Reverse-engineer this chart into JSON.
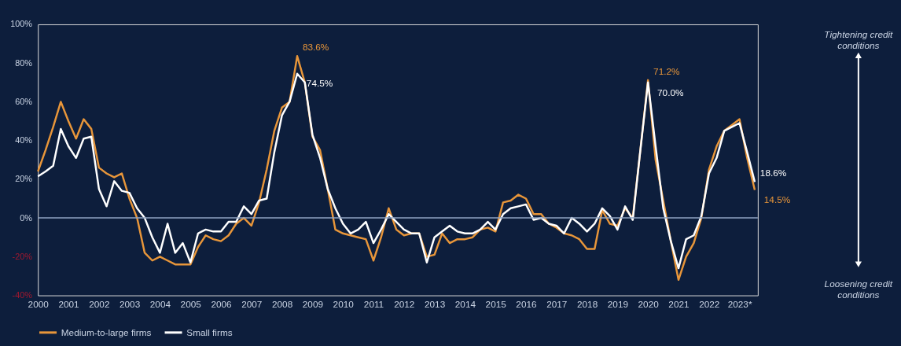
{
  "chart_data": {
    "type": "line",
    "x": [
      2000,
      2000.25,
      2000.5,
      2000.75,
      2001,
      2001.25,
      2001.5,
      2001.75,
      2002,
      2002.25,
      2002.5,
      2002.75,
      2003,
      2003.25,
      2003.5,
      2003.75,
      2004,
      2004.25,
      2004.5,
      2004.75,
      2005,
      2005.25,
      2005.5,
      2005.75,
      2006,
      2006.25,
      2006.5,
      2006.75,
      2007,
      2007.25,
      2007.5,
      2007.75,
      2008,
      2008.25,
      2008.5,
      2008.75,
      2009,
      2009.25,
      2009.5,
      2009.75,
      2010,
      2010.25,
      2010.5,
      2010.75,
      2011,
      2011.25,
      2011.5,
      2011.75,
      2012,
      2012.25,
      2012.5,
      2012.75,
      2013,
      2013.25,
      2013.5,
      2013.75,
      2014,
      2014.25,
      2014.5,
      2014.75,
      2015,
      2015.25,
      2015.5,
      2015.75,
      2016,
      2016.25,
      2016.5,
      2016.75,
      2017,
      2017.25,
      2017.5,
      2017.75,
      2018,
      2018.25,
      2018.5,
      2018.75,
      2019,
      2019.25,
      2019.5,
      2019.75,
      2020,
      2020.25,
      2020.5,
      2020.75,
      2021,
      2021.25,
      2021.5,
      2021.75,
      2022,
      2022.25,
      2022.5,
      2022.75,
      2023,
      2023.25,
      2023.5
    ],
    "series": [
      {
        "name": "Medium-to-large firms",
        "color": "#e8963a",
        "values": [
          24,
          35,
          47,
          60,
          50,
          41,
          51,
          46,
          26,
          23,
          21,
          23,
          10,
          0,
          -18,
          -22,
          -20,
          -22,
          -24,
          -24,
          -24,
          -15,
          -9,
          -11,
          -12,
          -9,
          -3,
          0,
          -4,
          8,
          25,
          45,
          57,
          60,
          83.6,
          70,
          42,
          35,
          15,
          -6,
          -8,
          -9,
          -10,
          -11,
          -22,
          -10,
          5,
          -6,
          -9,
          -8,
          -8,
          -20,
          -19,
          -8,
          -13,
          -11,
          -11,
          -10,
          -6,
          -5,
          -7,
          8,
          9,
          12,
          10,
          2,
          2,
          -3,
          -5,
          -8,
          -9,
          -11,
          -16,
          -16,
          4,
          -3,
          -4,
          5,
          0,
          35,
          71.2,
          30,
          9,
          -12,
          -32,
          -20,
          -13,
          0,
          25,
          37,
          45,
          48,
          51,
          31,
          14.5
        ],
        "value_labels": [
          null,
          null,
          null,
          null,
          null,
          null,
          null,
          null,
          null,
          null,
          null,
          null,
          null,
          null,
          null,
          null,
          null,
          null,
          null,
          null,
          null,
          null,
          null,
          null,
          null,
          null,
          null,
          null,
          null,
          null,
          null,
          null,
          null,
          null,
          "83.6%",
          null,
          null,
          null,
          null,
          null,
          null,
          null,
          null,
          null,
          null,
          null,
          null,
          null,
          null,
          null,
          null,
          null,
          null,
          null,
          null,
          null,
          null,
          null,
          null,
          null,
          null,
          null,
          null,
          null,
          null,
          null,
          null,
          null,
          null,
          null,
          null,
          null,
          null,
          null,
          null,
          null,
          null,
          null,
          null,
          null,
          "71.2%",
          null,
          null,
          null,
          null,
          null,
          null,
          null,
          null,
          null,
          null,
          null,
          null,
          null,
          "14.5%"
        ]
      },
      {
        "name": "Small firms",
        "color": "#ffffff",
        "values": [
          21.5,
          24,
          27,
          46,
          37,
          31,
          41,
          42,
          15,
          6,
          19,
          14,
          13,
          5,
          0,
          -10,
          -18,
          -3,
          -18,
          -13,
          -23,
          -8,
          -6,
          -7,
          -7,
          -2,
          -2,
          6,
          2,
          9,
          10,
          34,
          53,
          60,
          74.5,
          70,
          43,
          31,
          15,
          5,
          -3,
          -8,
          -6,
          -2,
          -13,
          -6,
          2,
          -2,
          -6,
          -8,
          -8,
          -23,
          -10,
          -7,
          -4,
          -7,
          -8,
          -8,
          -6,
          -2,
          -6,
          2,
          5,
          6,
          7,
          -1,
          0,
          -3,
          -4,
          -8,
          0,
          -3,
          -7,
          -3,
          5,
          1,
          -6,
          6,
          -1,
          35,
          70,
          37,
          5,
          -12,
          -26,
          -11,
          -9,
          1,
          23,
          31,
          45,
          47,
          49,
          34,
          18.6
        ],
        "value_labels": [
          null,
          null,
          null,
          null,
          null,
          null,
          null,
          null,
          null,
          null,
          null,
          null,
          null,
          null,
          null,
          null,
          null,
          null,
          null,
          null,
          null,
          null,
          null,
          null,
          null,
          null,
          null,
          null,
          null,
          null,
          null,
          null,
          null,
          null,
          "74.5%",
          null,
          null,
          null,
          null,
          null,
          null,
          null,
          null,
          null,
          null,
          null,
          null,
          null,
          null,
          null,
          null,
          null,
          null,
          null,
          null,
          null,
          null,
          null,
          null,
          null,
          null,
          null,
          null,
          null,
          null,
          null,
          null,
          null,
          null,
          null,
          null,
          null,
          null,
          null,
          null,
          null,
          null,
          null,
          null,
          null,
          "70.0%",
          null,
          null,
          null,
          null,
          null,
          null,
          null,
          null,
          null,
          null,
          null,
          null,
          null,
          "18.6%"
        ]
      }
    ],
    "xlim": [
      2000,
      2023.6
    ],
    "xticks": [
      2000,
      2001,
      2002,
      2003,
      2004,
      2005,
      2006,
      2007,
      2008,
      2009,
      2010,
      2011,
      2012,
      2013,
      2014,
      2015,
      2016,
      2017,
      2018,
      2019,
      2020,
      2021,
      2022,
      {
        "value": 2023,
        "label": "2023*"
      }
    ],
    "ylim": [
      -40,
      100
    ],
    "yticks": [
      {
        "value": -40,
        "label": "-40%"
      },
      {
        "value": -20,
        "label": "-20%"
      },
      {
        "value": 0,
        "label": "0%"
      },
      {
        "value": 20,
        "label": "20%"
      },
      {
        "value": 40,
        "label": "40%"
      },
      {
        "value": 60,
        "label": "60%"
      },
      {
        "value": 80,
        "label": "80%"
      },
      {
        "value": 100,
        "label": "100%"
      }
    ],
    "ref_lines": [
      {
        "axis": "y",
        "value": 0,
        "color": "#8fa3c2"
      }
    ],
    "annotations": [
      "Tightening credit conditions",
      "Loosening credit conditions"
    ],
    "grid": false,
    "legend": "bottom"
  }
}
